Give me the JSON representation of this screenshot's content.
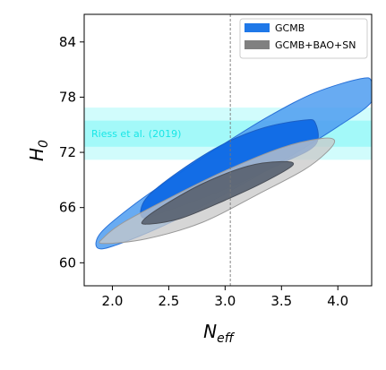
{
  "chart_data": {
    "type": "contour",
    "xlabel": "N_eff",
    "ylabel": "H_0",
    "xlabel_main": "N",
    "xlabel_sub": "eff",
    "ylabel_main": "H",
    "ylabel_sub": "0",
    "xlim": [
      1.75,
      4.3
    ],
    "ylim": [
      57.5,
      87.0
    ],
    "x_ticks": [
      2.0,
      2.5,
      3.0,
      3.5,
      4.0
    ],
    "x_tick_labels": [
      "2.0",
      "2.5",
      "3.0",
      "3.5",
      "4.0"
    ],
    "y_ticks": [
      60,
      66,
      72,
      78,
      84
    ],
    "y_tick_labels": [
      "60",
      "66",
      "72",
      "78",
      "84"
    ],
    "grid": false,
    "legend_position": "top-right",
    "legend": [
      {
        "label": "GCMB",
        "color": "#1f78e8"
      },
      {
        "label": "GCMB+BAO+SN",
        "color": "#808080"
      }
    ],
    "reference_line": {
      "x": 3.046,
      "style": "dashed",
      "color": "#777777"
    },
    "band": {
      "label": "Riess et al. (2019)",
      "label_color": "#19e6e6",
      "center": 74.03,
      "sigma1": [
        72.61,
        75.45
      ],
      "sigma2": [
        71.19,
        76.87
      ],
      "color": "#00f0f0"
    },
    "contours": [
      {
        "name": "GCMB",
        "level": "95%",
        "color": "#4e9cf0",
        "points": [
          [
            1.87,
            61.6
          ],
          [
            2.05,
            62.0
          ],
          [
            2.5,
            64.3
          ],
          [
            3.0,
            67.5
          ],
          [
            3.5,
            71.0
          ],
          [
            4.0,
            74.8
          ],
          [
            4.3,
            77.5
          ],
          [
            4.3,
            79.7
          ],
          [
            4.2,
            80.0
          ],
          [
            3.8,
            78.5
          ],
          [
            3.4,
            76.0
          ],
          [
            3.0,
            73.0
          ],
          [
            2.6,
            69.8
          ],
          [
            2.2,
            66.4
          ],
          [
            1.9,
            63.3
          ]
        ]
      },
      {
        "name": "GCMB",
        "level": "68%",
        "color": "#0a66e4",
        "points": [
          [
            2.27,
            64.9
          ],
          [
            2.5,
            65.7
          ],
          [
            3.0,
            68.0
          ],
          [
            3.5,
            70.8
          ],
          [
            3.8,
            72.8
          ],
          [
            3.8,
            75.2
          ],
          [
            3.7,
            75.5
          ],
          [
            3.35,
            74.7
          ],
          [
            3.0,
            73.0
          ],
          [
            2.6,
            70.0
          ],
          [
            2.3,
            67.0
          ]
        ]
      },
      {
        "name": "GCMB+BAO+SN",
        "level": "95%",
        "color": "#c8c8c8",
        "points": [
          [
            1.92,
            62.1
          ],
          [
            2.3,
            62.6
          ],
          [
            2.8,
            64.4
          ],
          [
            3.3,
            67.5
          ],
          [
            3.7,
            70.1
          ],
          [
            3.9,
            72.0
          ],
          [
            3.97,
            73.3
          ],
          [
            3.85,
            73.5
          ],
          [
            3.5,
            72.5
          ],
          [
            3.0,
            70.0
          ],
          [
            2.5,
            67.0
          ],
          [
            2.1,
            64.4
          ],
          [
            1.92,
            62.7
          ]
        ]
      },
      {
        "name": "GCMB+BAO+SN",
        "level": "68%",
        "color": "#5c6574",
        "points": [
          [
            2.3,
            64.2
          ],
          [
            2.6,
            64.8
          ],
          [
            3.0,
            66.8
          ],
          [
            3.35,
            68.8
          ],
          [
            3.6,
            70.6
          ],
          [
            3.5,
            71.0
          ],
          [
            3.2,
            70.5
          ],
          [
            2.8,
            68.6
          ],
          [
            2.45,
            66.2
          ],
          [
            2.28,
            64.7
          ]
        ]
      }
    ]
  }
}
